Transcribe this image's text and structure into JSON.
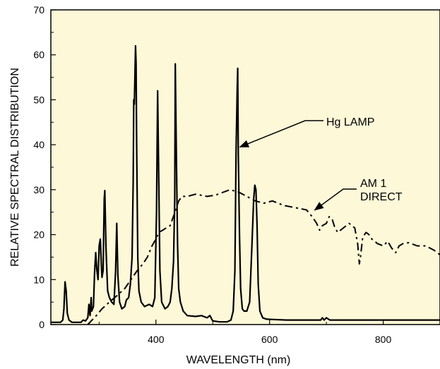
{
  "chart_data": {
    "type": "line",
    "title": "",
    "xlabel": "WAVELENGTH (nm)",
    "ylabel": "RELATIVE SPECTRAL DISTRIBUTION",
    "xlim": [
      215,
      900
    ],
    "ylim": [
      0,
      70
    ],
    "x_ticks": [
      400,
      600,
      800
    ],
    "x_tick_labels": [
      "400",
      "600",
      "800"
    ],
    "y_ticks": [
      0,
      10,
      20,
      30,
      40,
      50,
      60,
      70
    ],
    "y_tick_labels": [
      "0",
      "10",
      "20",
      "30",
      "40",
      "50",
      "60",
      "70"
    ],
    "grid": false,
    "colors": {
      "plot_background": "#fdf8d8",
      "line": "#000000"
    },
    "series": [
      {
        "style": "solid",
        "points": [
          [
            215,
            0.5
          ],
          [
            232,
            0.5
          ],
          [
            236,
            1.0
          ],
          [
            238,
            3.5
          ],
          [
            240,
            9.5
          ],
          [
            242,
            7.5
          ],
          [
            244,
            2.5
          ],
          [
            247,
            1.0
          ],
          [
            252,
            0.5
          ],
          [
            268,
            0.5
          ],
          [
            272,
            1.0
          ],
          [
            276,
            0.8
          ],
          [
            280,
            1.5
          ],
          [
            282,
            4.5
          ],
          [
            284,
            2.0
          ],
          [
            286,
            6.0
          ],
          [
            287,
            3.0
          ],
          [
            290,
            4.0
          ],
          [
            292,
            11.5
          ],
          [
            294,
            16.0
          ],
          [
            296,
            12.0
          ],
          [
            298,
            10.0
          ],
          [
            300,
            17.5
          ],
          [
            302,
            19.0
          ],
          [
            304,
            13.0
          ],
          [
            305,
            10.5
          ],
          [
            307,
            12.0
          ],
          [
            309,
            28.0
          ],
          [
            310,
            29.8
          ],
          [
            312,
            17.5
          ],
          [
            313,
            14.0
          ],
          [
            315,
            7.5
          ],
          [
            318,
            6.0
          ],
          [
            322,
            5.0
          ],
          [
            326,
            4.5
          ],
          [
            329,
            12.0
          ],
          [
            331,
            22.5
          ],
          [
            333,
            11.0
          ],
          [
            336,
            5.0
          ],
          [
            340,
            3.5
          ],
          [
            345,
            4.0
          ],
          [
            348,
            5.5
          ],
          [
            352,
            6.0
          ],
          [
            355,
            9.0
          ],
          [
            358,
            15.0
          ],
          [
            360,
            32.0
          ],
          [
            361,
            50.0
          ],
          [
            362,
            49.0
          ],
          [
            363,
            55.0
          ],
          [
            364,
            62.0
          ],
          [
            365,
            58.0
          ],
          [
            366,
            40.0
          ],
          [
            368,
            15.0
          ],
          [
            370,
            7.5
          ],
          [
            374,
            5.0
          ],
          [
            380,
            4.0
          ],
          [
            388,
            4.5
          ],
          [
            394,
            4.0
          ],
          [
            398,
            6.0
          ],
          [
            401,
            25.0
          ],
          [
            403,
            52.0
          ],
          [
            405,
            32.0
          ],
          [
            407,
            12.0
          ],
          [
            410,
            5.0
          ],
          [
            416,
            3.5
          ],
          [
            421,
            4.0
          ],
          [
            425,
            5.0
          ],
          [
            428,
            8.0
          ],
          [
            431,
            14.0
          ],
          [
            433,
            28.0
          ],
          [
            434,
            58.0
          ],
          [
            436,
            37.0
          ],
          [
            438,
            18.0
          ],
          [
            440,
            8.0
          ],
          [
            443,
            5.0
          ],
          [
            448,
            3.0
          ],
          [
            455,
            2.0
          ],
          [
            470,
            1.8
          ],
          [
            480,
            2.0
          ],
          [
            490,
            1.5
          ],
          [
            495,
            2.0
          ],
          [
            500,
            0.8
          ],
          [
            512,
            0.6
          ],
          [
            525,
            0.6
          ],
          [
            532,
            1.0
          ],
          [
            536,
            3.0
          ],
          [
            539,
            12.0
          ],
          [
            541,
            38.0
          ],
          [
            543,
            52.0
          ],
          [
            544,
            57.0
          ],
          [
            545,
            38.0
          ],
          [
            547,
            20.0
          ],
          [
            549,
            8.0
          ],
          [
            552,
            3.5
          ],
          [
            555,
            3.0
          ],
          [
            560,
            3.0
          ],
          [
            565,
            5.0
          ],
          [
            569,
            18.0
          ],
          [
            572,
            28.0
          ],
          [
            574,
            31.0
          ],
          [
            576,
            30.0
          ],
          [
            578,
            22.0
          ],
          [
            580,
            9.0
          ],
          [
            583,
            3.0
          ],
          [
            588,
            1.5
          ],
          [
            595,
            1.2
          ],
          [
            630,
            1.0
          ],
          [
            690,
            1.0
          ],
          [
            693,
            1.5
          ],
          [
            696,
            1.0
          ],
          [
            700,
            1.5
          ],
          [
            706,
            1.0
          ],
          [
            760,
            1.0
          ],
          [
            830,
            1.0
          ],
          [
            900,
            1.0
          ]
        ]
      },
      {
        "style": "dash-dot",
        "points": [
          [
            280,
            0.0
          ],
          [
            295,
            2.0
          ],
          [
            305,
            3.5
          ],
          [
            318,
            5.0
          ],
          [
            332,
            6.5
          ],
          [
            345,
            8.0
          ],
          [
            356,
            10.0
          ],
          [
            367,
            12.0
          ],
          [
            377,
            13.5
          ],
          [
            385,
            15.0
          ],
          [
            393,
            17.5
          ],
          [
            400,
            19.0
          ],
          [
            405,
            20.5
          ],
          [
            412,
            21.0
          ],
          [
            418,
            21.5
          ],
          [
            425,
            22.0
          ],
          [
            432,
            24.5
          ],
          [
            440,
            27.5
          ],
          [
            446,
            28.5
          ],
          [
            455,
            28.5
          ],
          [
            470,
            29.0
          ],
          [
            490,
            28.5
          ],
          [
            505,
            28.8
          ],
          [
            520,
            29.5
          ],
          [
            530,
            30.0
          ],
          [
            545,
            29.5
          ],
          [
            560,
            28.5
          ],
          [
            575,
            27.5
          ],
          [
            590,
            27.0
          ],
          [
            605,
            27.5
          ],
          [
            625,
            26.5
          ],
          [
            645,
            26.0
          ],
          [
            665,
            25.5
          ],
          [
            675,
            24.0
          ],
          [
            683,
            22.5
          ],
          [
            688,
            21.0
          ],
          [
            693,
            22.0
          ],
          [
            700,
            22.5
          ],
          [
            705,
            24.0
          ],
          [
            710,
            23.5
          ],
          [
            715,
            21.5
          ],
          [
            720,
            20.5
          ],
          [
            730,
            21.5
          ],
          [
            740,
            22.5
          ],
          [
            745,
            22.0
          ],
          [
            750,
            21.5
          ],
          [
            755,
            18.0
          ],
          [
            758,
            13.5
          ],
          [
            760,
            15.0
          ],
          [
            764,
            19.5
          ],
          [
            770,
            20.5
          ],
          [
            775,
            20.0
          ],
          [
            780,
            19.0
          ],
          [
            790,
            18.0
          ],
          [
            800,
            17.5
          ],
          [
            808,
            18.5
          ],
          [
            815,
            17.0
          ],
          [
            822,
            16.0
          ],
          [
            828,
            17.5
          ],
          [
            835,
            18.0
          ],
          [
            845,
            18.2
          ],
          [
            860,
            17.5
          ],
          [
            875,
            17.5
          ],
          [
            890,
            16.5
          ],
          [
            900,
            15.5
          ]
        ]
      }
    ],
    "annotations": [
      {
        "lines": [
          "Hg LAMP"
        ],
        "points_to": [
          543,
          39.5
        ]
      },
      {
        "lines": [
          "AM 1",
          "DIRECT"
        ],
        "points_to": [
          672,
          25.0
        ]
      }
    ]
  }
}
